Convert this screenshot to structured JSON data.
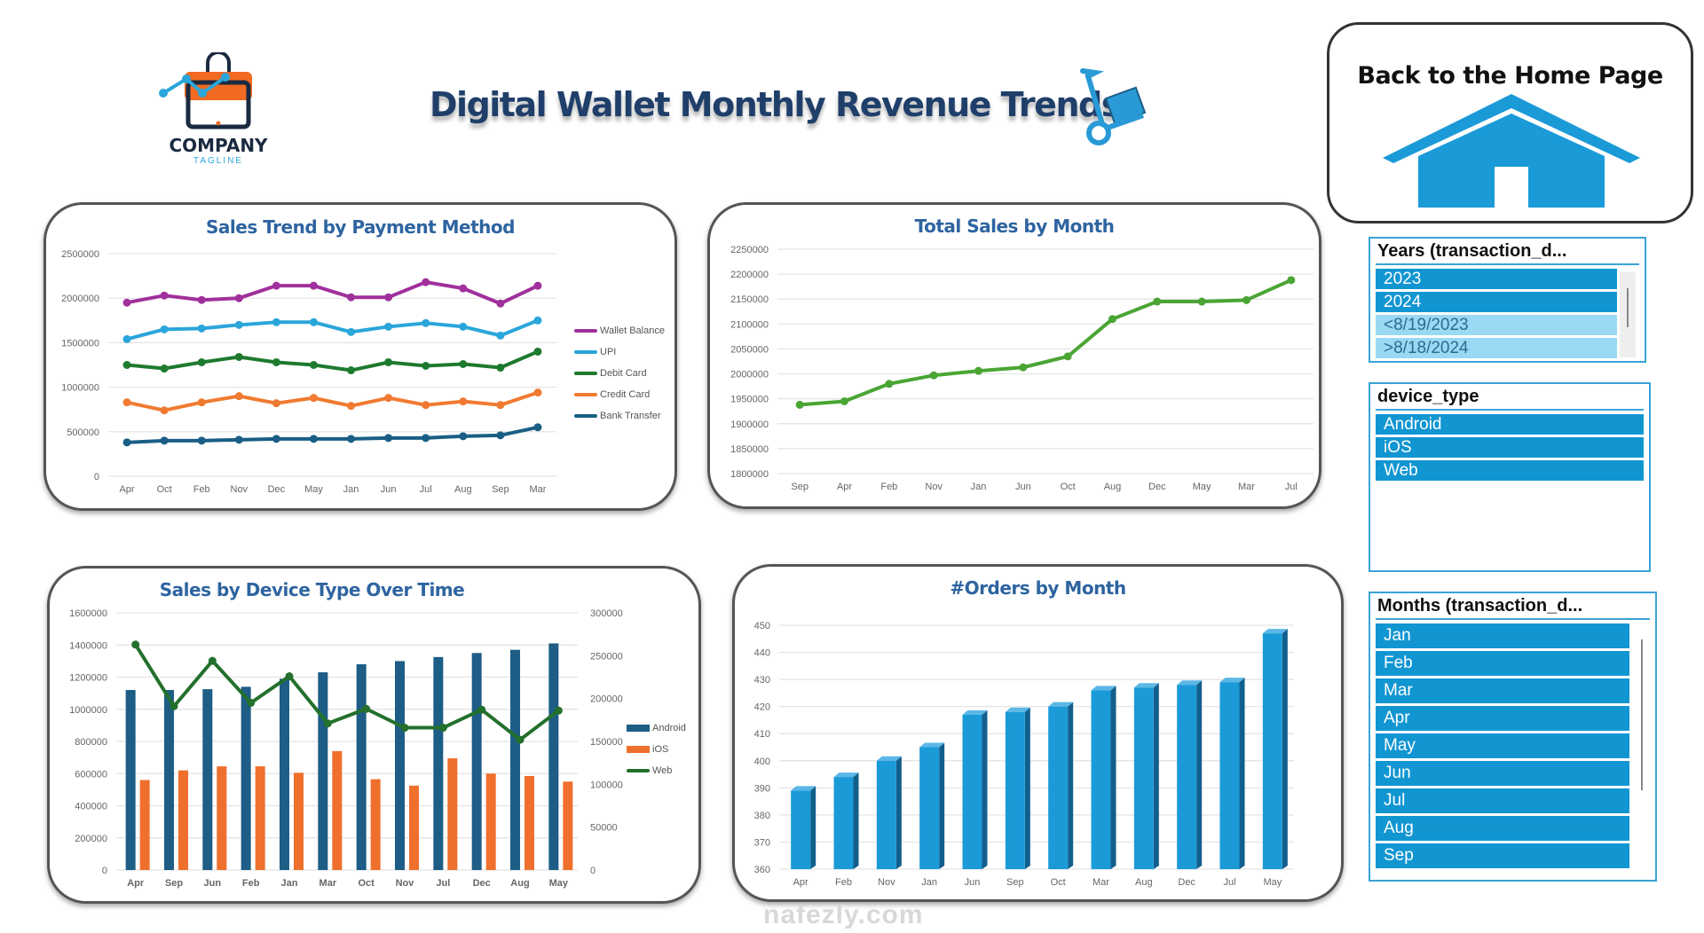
{
  "header": {
    "title": "Digital Wallet Monthly Revenue Trends",
    "logo_name": "COMPANY",
    "logo_tagline": "TAGLINE"
  },
  "home_button": {
    "label": "Back to the Home Page"
  },
  "slicers": {
    "years": {
      "title": "Years (transaction_d...",
      "items": [
        {
          "label": "2023",
          "selected": true
        },
        {
          "label": "2024",
          "selected": true
        },
        {
          "label": "<8/19/2023",
          "selected": false
        },
        {
          "label": ">8/18/2024",
          "selected": false
        }
      ]
    },
    "device": {
      "title": "device_type",
      "items": [
        {
          "label": "Android",
          "selected": true
        },
        {
          "label": "iOS",
          "selected": true
        },
        {
          "label": "Web",
          "selected": true
        }
      ]
    },
    "months": {
      "title": "Months (transaction_d...",
      "items": [
        {
          "label": "Jan",
          "selected": true
        },
        {
          "label": "Feb",
          "selected": true
        },
        {
          "label": "Mar",
          "selected": true
        },
        {
          "label": "Apr",
          "selected": true
        },
        {
          "label": "May",
          "selected": true
        },
        {
          "label": "Jun",
          "selected": true
        },
        {
          "label": "Jul",
          "selected": true
        },
        {
          "label": "Aug",
          "selected": true
        },
        {
          "label": "Sep",
          "selected": true
        }
      ]
    }
  },
  "watermark": "nafezly.com",
  "chart_data": [
    {
      "id": "payment",
      "type": "line",
      "title": "Sales Trend by Payment Method",
      "ylim": [
        0,
        2500000
      ],
      "ystep": 500000,
      "legend": "right",
      "categories": [
        "Apr",
        "Oct",
        "Feb",
        "Nov",
        "Dec",
        "May",
        "Jan",
        "Jun",
        "Jul",
        "Aug",
        "Sep",
        "Mar"
      ],
      "series": [
        {
          "name": "Wallet Balance",
          "color": "#a0309c",
          "values": [
            1950000,
            2030000,
            1980000,
            2000000,
            2140000,
            2140000,
            2010000,
            2010000,
            2180000,
            2110000,
            1940000,
            2140000
          ]
        },
        {
          "name": "UPI",
          "color": "#2aa6da",
          "values": [
            1540000,
            1650000,
            1660000,
            1700000,
            1730000,
            1730000,
            1620000,
            1680000,
            1720000,
            1680000,
            1580000,
            1750000
          ]
        },
        {
          "name": "Debit Card",
          "color": "#1e7a2e",
          "values": [
            1250000,
            1210000,
            1280000,
            1340000,
            1280000,
            1250000,
            1190000,
            1280000,
            1240000,
            1260000,
            1220000,
            1400000
          ]
        },
        {
          "name": "Credit Card",
          "color": "#f07a30",
          "values": [
            830000,
            740000,
            830000,
            900000,
            820000,
            880000,
            790000,
            880000,
            800000,
            840000,
            800000,
            940000
          ]
        },
        {
          "name": "Bank Transfer",
          "color": "#1a5e85",
          "values": [
            380000,
            400000,
            400000,
            410000,
            420000,
            420000,
            420000,
            430000,
            430000,
            450000,
            460000,
            550000
          ]
        }
      ]
    },
    {
      "id": "total",
      "type": "line",
      "title": "Total Sales by Month",
      "ylim": [
        1800000,
        2250000
      ],
      "ystep": 50000,
      "categories": [
        "Sep",
        "Apr",
        "Feb",
        "Nov",
        "Jan",
        "Jun",
        "Oct",
        "Aug",
        "Dec",
        "May",
        "Mar",
        "Jul"
      ],
      "series": [
        {
          "name": "Total Sales",
          "color": "#4aa534",
          "values": [
            1938000,
            1945000,
            1980000,
            1997000,
            2006000,
            2013000,
            2035000,
            2110000,
            2145000,
            2145000,
            2148000,
            2188000
          ]
        }
      ]
    },
    {
      "id": "device",
      "type": "bar",
      "title": "Sales by Device Type Over Time",
      "ylim": [
        0,
        1600000
      ],
      "ystep": 200000,
      "y2lim": [
        0,
        300000
      ],
      "y2step": 50000,
      "legend": "right",
      "categories": [
        "Apr",
        "Sep",
        "Jun",
        "Feb",
        "Jan",
        "Mar",
        "Oct",
        "Nov",
        "Jul",
        "Dec",
        "Aug",
        "May"
      ],
      "series": [
        {
          "name": "Android",
          "kind": "bar",
          "color": "#1d5d86",
          "values": [
            1120000,
            1120000,
            1125000,
            1140000,
            1190000,
            1230000,
            1280000,
            1300000,
            1325000,
            1350000,
            1370000,
            1410000
          ]
        },
        {
          "name": "iOS",
          "kind": "bar",
          "color": "#ef6f2c",
          "values": [
            560000,
            620000,
            645000,
            645000,
            605000,
            740000,
            565000,
            525000,
            695000,
            600000,
            585000,
            550000
          ]
        },
        {
          "name": "Web",
          "kind": "line",
          "axis": "secondary",
          "color": "#23702c",
          "values": [
            263000,
            191000,
            244000,
            195000,
            226000,
            171000,
            188000,
            166000,
            166000,
            187000,
            152000,
            186000
          ]
        }
      ]
    },
    {
      "id": "orders",
      "type": "bar",
      "title": "#Orders by Month",
      "ylim": [
        360,
        450
      ],
      "ystep": 10,
      "categories": [
        "Apr",
        "Feb",
        "Nov",
        "Jan",
        "Jun",
        "Sep",
        "Oct",
        "Mar",
        "Aug",
        "Dec",
        "Jul",
        "May"
      ],
      "series": [
        {
          "name": "#Orders",
          "kind": "bar",
          "color": "#1b9ad8",
          "values": [
            389,
            394,
            400,
            405,
            417,
            418,
            420,
            426,
            427,
            428,
            429,
            447
          ]
        }
      ]
    }
  ]
}
